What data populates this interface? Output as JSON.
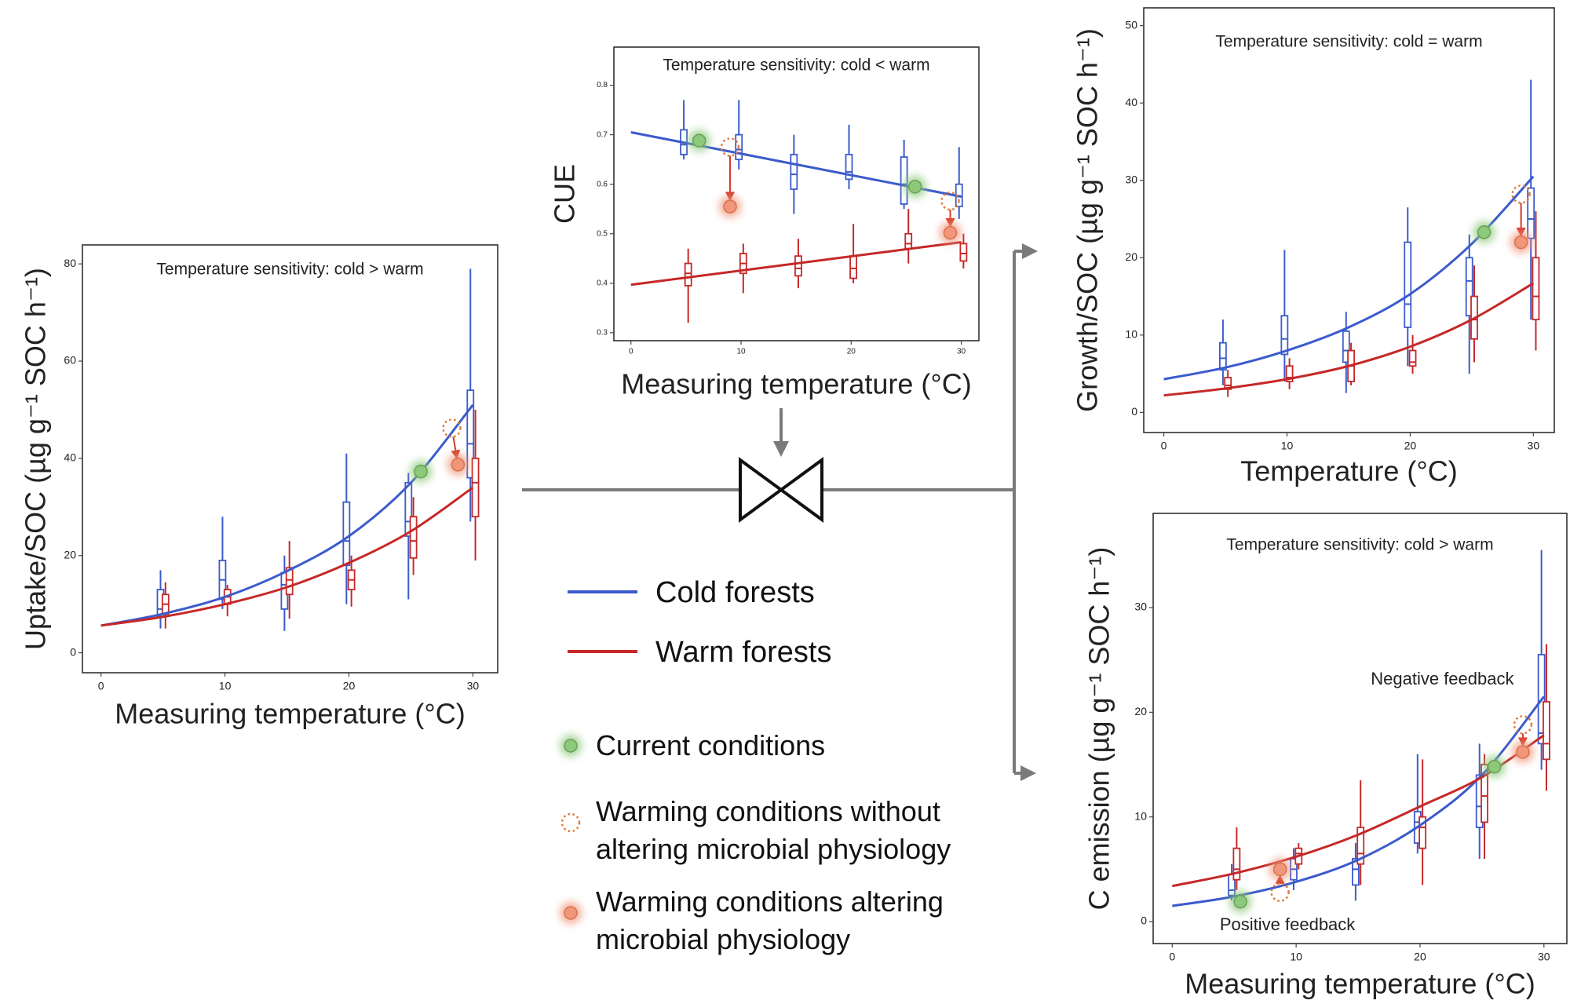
{
  "chart_data": [
    {
      "type": "box",
      "title": "Temperature sensitivity: cold > warm",
      "x_label": "Measuring temperature (°C)",
      "y_label": "Uptake/SOC (µg g⁻¹ SOC h⁻¹)",
      "xlim": [
        -1.5,
        32
      ],
      "ylim": [
        -4.1,
        83.9
      ],
      "xticks": [
        0,
        10,
        20,
        30
      ],
      "yticks": [
        0,
        20,
        40,
        60,
        80
      ],
      "series": [
        {
          "color": "#3b5bcc",
          "x": [
            0,
            5,
            10,
            15,
            20,
            25,
            30
          ],
          "values": [
            5.6,
            8,
            11.5,
            16.8,
            24,
            35,
            51
          ],
          "boxes": {
            "x": [
              4.8,
              9.8,
              14.8,
              19.8,
              24.8,
              29.8
            ],
            "low": [
              5,
              9,
              4.5,
              10,
              11,
              27
            ],
            "q1": [
              7.5,
              11,
              9,
              18,
              24,
              36
            ],
            "median": [
              9,
              15,
              14,
              23,
              27,
              43
            ],
            "q3": [
              13,
              19,
              16.5,
              31,
              35,
              54
            ],
            "high": [
              17,
              28,
              20,
              41,
              37,
              79
            ]
          }
        },
        {
          "color": "#c62828",
          "x": [
            0,
            5,
            10,
            15,
            20,
            25,
            30
          ],
          "values": [
            5.6,
            7.4,
            10,
            13.5,
            18.5,
            25,
            34
          ],
          "boxes": {
            "x": [
              5.2,
              10.2,
              15.2,
              20.2,
              25.2,
              30.2
            ],
            "low": [
              5,
              7.5,
              7,
              9.5,
              16,
              19
            ],
            "q1": [
              8,
              10,
              12,
              13,
              19.5,
              28
            ],
            "median": [
              10,
              11.5,
              15,
              15,
              23,
              35
            ],
            "q3": [
              12,
              13,
              17.5,
              17,
              28,
              40
            ],
            "high": [
              14.5,
              14,
              23,
              20,
              32,
              50
            ]
          }
        }
      ],
      "points": [
        {
          "x": [
            25.8
          ],
          "values": [
            37.3
          ]
        },
        {
          "x": [
            28.3
          ],
          "values": [
            46.2
          ]
        },
        {
          "x": [
            28.8
          ],
          "values": [
            38.7
          ]
        }
      ]
    },
    {
      "type": "box",
      "title": "Temperature sensitivity: cold < warm",
      "x_label": "Measuring temperature (°C)",
      "y_label": "CUE",
      "xlim": [
        -1.55,
        31.6
      ],
      "ylim": [
        0.284,
        0.877
      ],
      "xticks": [
        0,
        10,
        20,
        30
      ],
      "yticks": [
        0.3,
        0.4,
        0.5,
        0.6,
        0.7,
        0.8
      ],
      "series": [
        {
          "color": "#3b5bcc",
          "x": [
            0,
            30
          ],
          "values": [
            0.705,
            0.575
          ],
          "boxes": {
            "x": [
              4.8,
              9.8,
              14.8,
              19.8,
              24.8,
              29.8
            ],
            "low": [
              0.65,
              0.63,
              0.54,
              0.59,
              0.55,
              0.53
            ],
            "q1": [
              0.66,
              0.65,
              0.59,
              0.61,
              0.56,
              0.555
            ],
            "median": [
              0.68,
              0.67,
              0.62,
              0.625,
              0.6,
              0.575
            ],
            "q3": [
              0.71,
              0.7,
              0.66,
              0.66,
              0.655,
              0.6
            ],
            "high": [
              0.77,
              0.77,
              0.7,
              0.72,
              0.69,
              0.675
            ]
          }
        },
        {
          "color": "#c62828",
          "x": [
            0,
            30
          ],
          "values": [
            0.397,
            0.483
          ],
          "boxes": {
            "x": [
              5.2,
              10.2,
              15.2,
              20.2,
              25.2,
              30.2
            ],
            "low": [
              0.32,
              0.38,
              0.39,
              0.4,
              0.44,
              0.43
            ],
            "q1": [
              0.395,
              0.42,
              0.415,
              0.41,
              0.47,
              0.445
            ],
            "median": [
              0.42,
              0.44,
              0.43,
              0.43,
              0.48,
              0.46
            ],
            "q3": [
              0.44,
              0.46,
              0.455,
              0.455,
              0.5,
              0.48
            ],
            "high": [
              0.47,
              0.48,
              0.49,
              0.52,
              0.55,
              0.5
            ]
          }
        }
      ],
      "points": [
        {
          "x": [
            6.2,
            25.8
          ],
          "values": [
            0.688,
            0.595
          ]
        },
        {
          "x": [
            9,
            29
          ],
          "values": [
            0.675,
            0.566
          ]
        },
        {
          "x": [
            9,
            29
          ],
          "values": [
            0.555,
            0.502
          ]
        }
      ]
    },
    {
      "type": "box",
      "title": "Temperature sensitivity: cold = warm",
      "x_label": "Temperature (°C)",
      "y_label": "Growth/SOC (µg g⁻¹ SOC h⁻¹)",
      "xlim": [
        -1.63,
        31.7
      ],
      "ylim": [
        -2.6,
        52.3
      ],
      "xticks": [
        0,
        10,
        20,
        30
      ],
      "yticks": [
        0,
        10,
        20,
        30,
        40,
        50
      ],
      "series": [
        {
          "color": "#3b5bcc",
          "x": [
            0,
            5,
            10,
            15,
            20,
            25,
            30
          ],
          "values": [
            4.3,
            5.8,
            8,
            11,
            15.3,
            21.8,
            30.5
          ],
          "boxes": {
            "x": [
              4.8,
              9.8,
              14.8,
              19.8,
              24.8,
              29.8
            ],
            "low": [
              3.5,
              4,
              2.5,
              6,
              5,
              12
            ],
            "q1": [
              5.5,
              7.5,
              6.5,
              11,
              12.5,
              22.5
            ],
            "median": [
              7,
              9.5,
              8,
              14,
              17,
              25
            ],
            "q3": [
              9,
              12.5,
              10.5,
              22,
              20,
              29
            ],
            "high": [
              12,
              21,
              13,
              26.5,
              23,
              43
            ]
          }
        },
        {
          "color": "#c62828",
          "x": [
            0,
            5,
            10,
            15,
            20,
            25,
            30
          ],
          "values": [
            2.2,
            3.1,
            4.3,
            6,
            8.5,
            12,
            16.7
          ],
          "boxes": {
            "x": [
              5.2,
              10.2,
              15.2,
              20.2,
              25.2,
              30.2
            ],
            "low": [
              2,
              3,
              3.5,
              5,
              6.5,
              8
            ],
            "q1": [
              3,
              4,
              4,
              6,
              9.5,
              12
            ],
            "median": [
              3.5,
              4.5,
              6,
              6.5,
              12,
              15
            ],
            "q3": [
              4.5,
              6,
              8,
              8,
              15,
              20
            ],
            "high": [
              5.5,
              7,
              9,
              10,
              19,
              26
            ]
          }
        }
      ],
      "points": [
        {
          "x": [
            26
          ],
          "values": [
            23.3
          ]
        },
        {
          "x": [
            29
          ],
          "values": [
            28.2
          ]
        },
        {
          "x": [
            29
          ],
          "values": [
            22
          ]
        }
      ]
    },
    {
      "type": "box",
      "title": "Temperature sensitivity: cold > warm",
      "x_label": "Measuring temperature (°C)",
      "y_label": "C emission (µg g⁻¹ SOC h⁻¹)",
      "annotations": [
        "Negative feedback",
        "Positive feedback"
      ],
      "xlim": [
        -1.54,
        31.85
      ],
      "ylim": [
        -2.1,
        39
      ],
      "xticks": [
        0,
        10,
        20,
        30
      ],
      "yticks": [
        0,
        10,
        20,
        30
      ],
      "series": [
        {
          "color": "#3b5bcc",
          "x": [
            0,
            5,
            10,
            15,
            20,
            25,
            30
          ],
          "values": [
            1.5,
            2.4,
            3.8,
            5.9,
            9.2,
            14,
            21.5
          ],
          "boxes": {
            "x": [
              4.8,
              9.8,
              14.8,
              19.8,
              24.8,
              29.8
            ],
            "low": [
              2,
              3,
              2,
              6.5,
              6,
              14.5
            ],
            "q1": [
              2.5,
              4,
              3.5,
              7.5,
              9,
              17
            ],
            "median": [
              3,
              5,
              5,
              9.5,
              11,
              18
            ],
            "q3": [
              4.5,
              6,
              6,
              10.5,
              14,
              25.5
            ],
            "high": [
              5.5,
              7,
              7.5,
              16,
              17,
              35.5
            ]
          }
        },
        {
          "color": "#c62828",
          "x": [
            0,
            5,
            10,
            15,
            20,
            25,
            30
          ],
          "values": [
            3.4,
            4.6,
            6.2,
            8.3,
            11,
            13.8,
            17.8
          ],
          "boxes": {
            "x": [
              5.2,
              10.2,
              15.2,
              20.2,
              25.2,
              30.2
            ],
            "low": [
              3,
              5,
              3.5,
              3.5,
              6,
              12.5
            ],
            "q1": [
              4,
              5.5,
              5.5,
              7,
              9.5,
              15.5
            ],
            "median": [
              5,
              6.5,
              6.5,
              9,
              12,
              17
            ],
            "q3": [
              7,
              7,
              9,
              10,
              15,
              21
            ],
            "high": [
              9,
              7.5,
              13.5,
              15.5,
              16,
              26.5
            ]
          }
        }
      ],
      "points": [
        {
          "x": [
            5.5,
            26
          ],
          "values": [
            1.9,
            14.8
          ]
        },
        {
          "x": [
            8.7,
            28.3
          ],
          "values": [
            2.8,
            18.8
          ]
        },
        {
          "x": [
            8.7,
            28.3
          ],
          "values": [
            5,
            16.2
          ]
        }
      ]
    }
  ],
  "legend": {
    "series": [
      {
        "name": "Cold forests",
        "color": "#3b5bcc"
      },
      {
        "name": "Warm forests",
        "color": "#c62828"
      }
    ],
    "markers": [
      {
        "name": "Current conditions",
        "color": "#8cc97a"
      },
      {
        "name": "Warming conditions without altering microbial physiology",
        "color": "#e07b39"
      },
      {
        "name": "Warming conditions altering microbial physiology",
        "color": "#f0967a"
      }
    ]
  }
}
